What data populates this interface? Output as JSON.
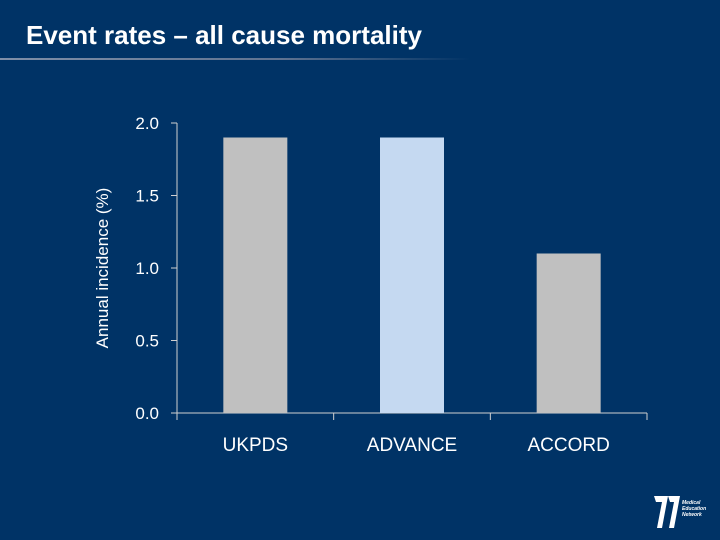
{
  "slide": {
    "title": "Event rates – all cause mortality"
  },
  "colors": {
    "background": "#003366",
    "bar_grey": "#c0c0c0",
    "bar_highlight": "#c5d9f1",
    "axis": "#d0d0d0",
    "text": "#ffffff"
  },
  "chart_data": {
    "type": "bar",
    "title": "",
    "xlabel": "",
    "ylabel": "Annual incidence (%)",
    "categories": [
      "UKPDS",
      "ADVANCE",
      "ACCORD"
    ],
    "values": [
      1.9,
      1.9,
      1.1
    ],
    "highlight_index": 1,
    "ylim": [
      0,
      2.0
    ],
    "yticks": [
      "0.0",
      "0.5",
      "1.0",
      "1.5",
      "2.0"
    ],
    "ytick_values": [
      0,
      0.5,
      1.0,
      1.5,
      2.0
    ],
    "grid": false,
    "legend": "none"
  },
  "logo": {
    "name": "medical-education-network-logo",
    "lines": [
      "Medical",
      "Education",
      "Network"
    ]
  }
}
